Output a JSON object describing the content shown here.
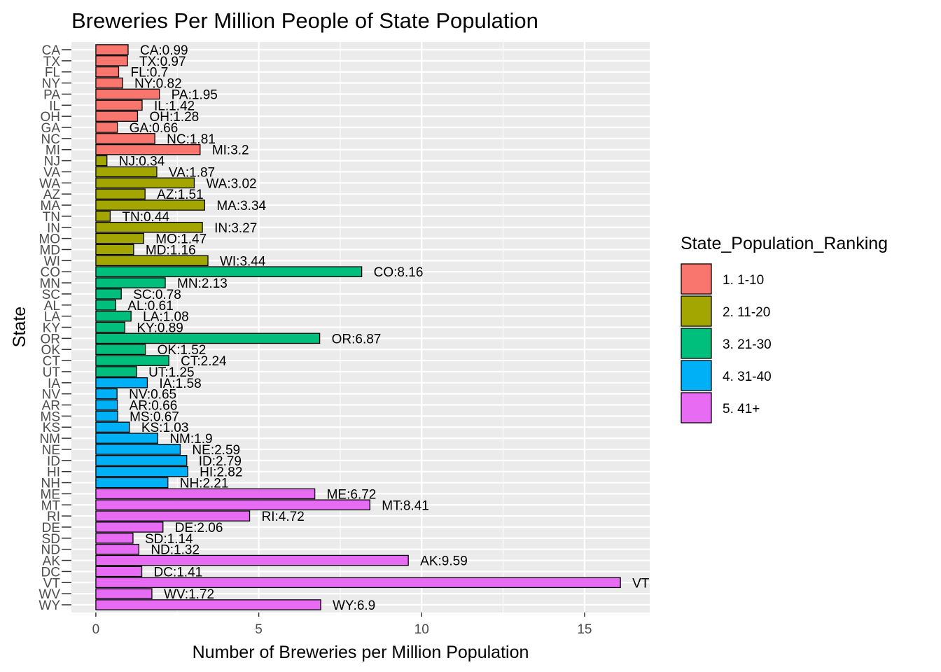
{
  "chart_data": {
    "type": "bar",
    "orientation": "horizontal",
    "title": "Breweries Per Million People of State Population",
    "xlabel": "Number of Breweries per Million Population",
    "ylabel": "State",
    "xlim": [
      -0.75,
      17
    ],
    "xticks": [
      0,
      5,
      10,
      15
    ],
    "grid": true,
    "legend_placement": "right",
    "legend": {
      "title": "State_Population_Ranking",
      "entries": [
        {
          "label": "1. 1-10",
          "color": "#F8766D"
        },
        {
          "label": "2. 11-20",
          "color": "#A3A500"
        },
        {
          "label": "3. 21-30",
          "color": "#00BF7D"
        },
        {
          "label": "4. 31-40",
          "color": "#00B0F6"
        },
        {
          "label": "5. 41+",
          "color": "#E76BF3"
        }
      ]
    },
    "bars": [
      {
        "state": "CA",
        "value": 0.99,
        "group": 0,
        "label": "CA:0.99"
      },
      {
        "state": "TX",
        "value": 0.97,
        "group": 0,
        "label": "TX:0.97"
      },
      {
        "state": "FL",
        "value": 0.7,
        "group": 0,
        "label": "FL:0.7"
      },
      {
        "state": "NY",
        "value": 0.82,
        "group": 0,
        "label": "NY:0.82"
      },
      {
        "state": "PA",
        "value": 1.95,
        "group": 0,
        "label": "PA:1.95"
      },
      {
        "state": "IL",
        "value": 1.42,
        "group": 0,
        "label": "IL:1.42"
      },
      {
        "state": "OH",
        "value": 1.28,
        "group": 0,
        "label": "OH:1.28"
      },
      {
        "state": "GA",
        "value": 0.66,
        "group": 0,
        "label": "GA:0.66"
      },
      {
        "state": "NC",
        "value": 1.81,
        "group": 0,
        "label": "NC:1.81"
      },
      {
        "state": "MI",
        "value": 3.2,
        "group": 0,
        "label": "MI:3.2"
      },
      {
        "state": "NJ",
        "value": 0.34,
        "group": 1,
        "label": "NJ:0.34"
      },
      {
        "state": "VA",
        "value": 1.87,
        "group": 1,
        "label": "VA:1.87"
      },
      {
        "state": "WA",
        "value": 3.02,
        "group": 1,
        "label": "WA:3.02"
      },
      {
        "state": "AZ",
        "value": 1.51,
        "group": 1,
        "label": "AZ:1.51"
      },
      {
        "state": "MA",
        "value": 3.34,
        "group": 1,
        "label": "MA:3.34"
      },
      {
        "state": "TN",
        "value": 0.44,
        "group": 1,
        "label": "TN:0.44"
      },
      {
        "state": "IN",
        "value": 3.27,
        "group": 1,
        "label": "IN:3.27"
      },
      {
        "state": "MO",
        "value": 1.47,
        "group": 1,
        "label": "MO:1.47"
      },
      {
        "state": "MD",
        "value": 1.16,
        "group": 1,
        "label": "MD:1.16"
      },
      {
        "state": "WI",
        "value": 3.44,
        "group": 1,
        "label": "WI:3.44"
      },
      {
        "state": "CO",
        "value": 8.16,
        "group": 2,
        "label": "CO:8.16"
      },
      {
        "state": "MN",
        "value": 2.13,
        "group": 2,
        "label": "MN:2.13"
      },
      {
        "state": "SC",
        "value": 0.78,
        "group": 2,
        "label": "SC:0.78"
      },
      {
        "state": "AL",
        "value": 0.61,
        "group": 2,
        "label": "AL:0.61"
      },
      {
        "state": "LA",
        "value": 1.08,
        "group": 2,
        "label": "LA:1.08"
      },
      {
        "state": "KY",
        "value": 0.89,
        "group": 2,
        "label": "KY:0.89"
      },
      {
        "state": "OR",
        "value": 6.87,
        "group": 2,
        "label": "OR:6.87"
      },
      {
        "state": "OK",
        "value": 1.52,
        "group": 2,
        "label": "OK:1.52"
      },
      {
        "state": "CT",
        "value": 2.24,
        "group": 2,
        "label": "CT:2.24"
      },
      {
        "state": "UT",
        "value": 1.25,
        "group": 2,
        "label": "UT:1.25"
      },
      {
        "state": "IA",
        "value": 1.58,
        "group": 3,
        "label": "IA:1.58"
      },
      {
        "state": "NV",
        "value": 0.65,
        "group": 3,
        "label": "NV:0.65"
      },
      {
        "state": "AR",
        "value": 0.66,
        "group": 3,
        "label": "AR:0.66"
      },
      {
        "state": "MS",
        "value": 0.67,
        "group": 3,
        "label": "MS:0.67"
      },
      {
        "state": "KS",
        "value": 1.03,
        "group": 3,
        "label": "KS:1.03"
      },
      {
        "state": "NM",
        "value": 1.9,
        "group": 3,
        "label": "NM:1.9"
      },
      {
        "state": "NE",
        "value": 2.59,
        "group": 3,
        "label": "NE:2.59"
      },
      {
        "state": "ID",
        "value": 2.79,
        "group": 3,
        "label": "ID:2.79"
      },
      {
        "state": "HI",
        "value": 2.82,
        "group": 3,
        "label": "HI:2.82"
      },
      {
        "state": "NH",
        "value": 2.21,
        "group": 3,
        "label": "NH:2.21"
      },
      {
        "state": "ME",
        "value": 6.72,
        "group": 4,
        "label": "ME:6.72"
      },
      {
        "state": "MT",
        "value": 8.41,
        "group": 4,
        "label": "MT:8.41"
      },
      {
        "state": "RI",
        "value": 4.72,
        "group": 4,
        "label": "RI:4.72"
      },
      {
        "state": "DE",
        "value": 2.06,
        "group": 4,
        "label": "DE:2.06"
      },
      {
        "state": "SD",
        "value": 1.14,
        "group": 4,
        "label": "SD:1.14"
      },
      {
        "state": "ND",
        "value": 1.32,
        "group": 4,
        "label": "ND:1.32"
      },
      {
        "state": "AK",
        "value": 9.59,
        "group": 4,
        "label": "AK:9.59"
      },
      {
        "state": "DC",
        "value": 1.41,
        "group": 4,
        "label": "DC:1.41"
      },
      {
        "state": "VT",
        "value": 16.1,
        "group": 4,
        "label": "VT"
      },
      {
        "state": "WV",
        "value": 1.72,
        "group": 4,
        "label": "WV:1.72"
      },
      {
        "state": "WY",
        "value": 6.9,
        "group": 4,
        "label": "WY:6.9"
      }
    ]
  }
}
